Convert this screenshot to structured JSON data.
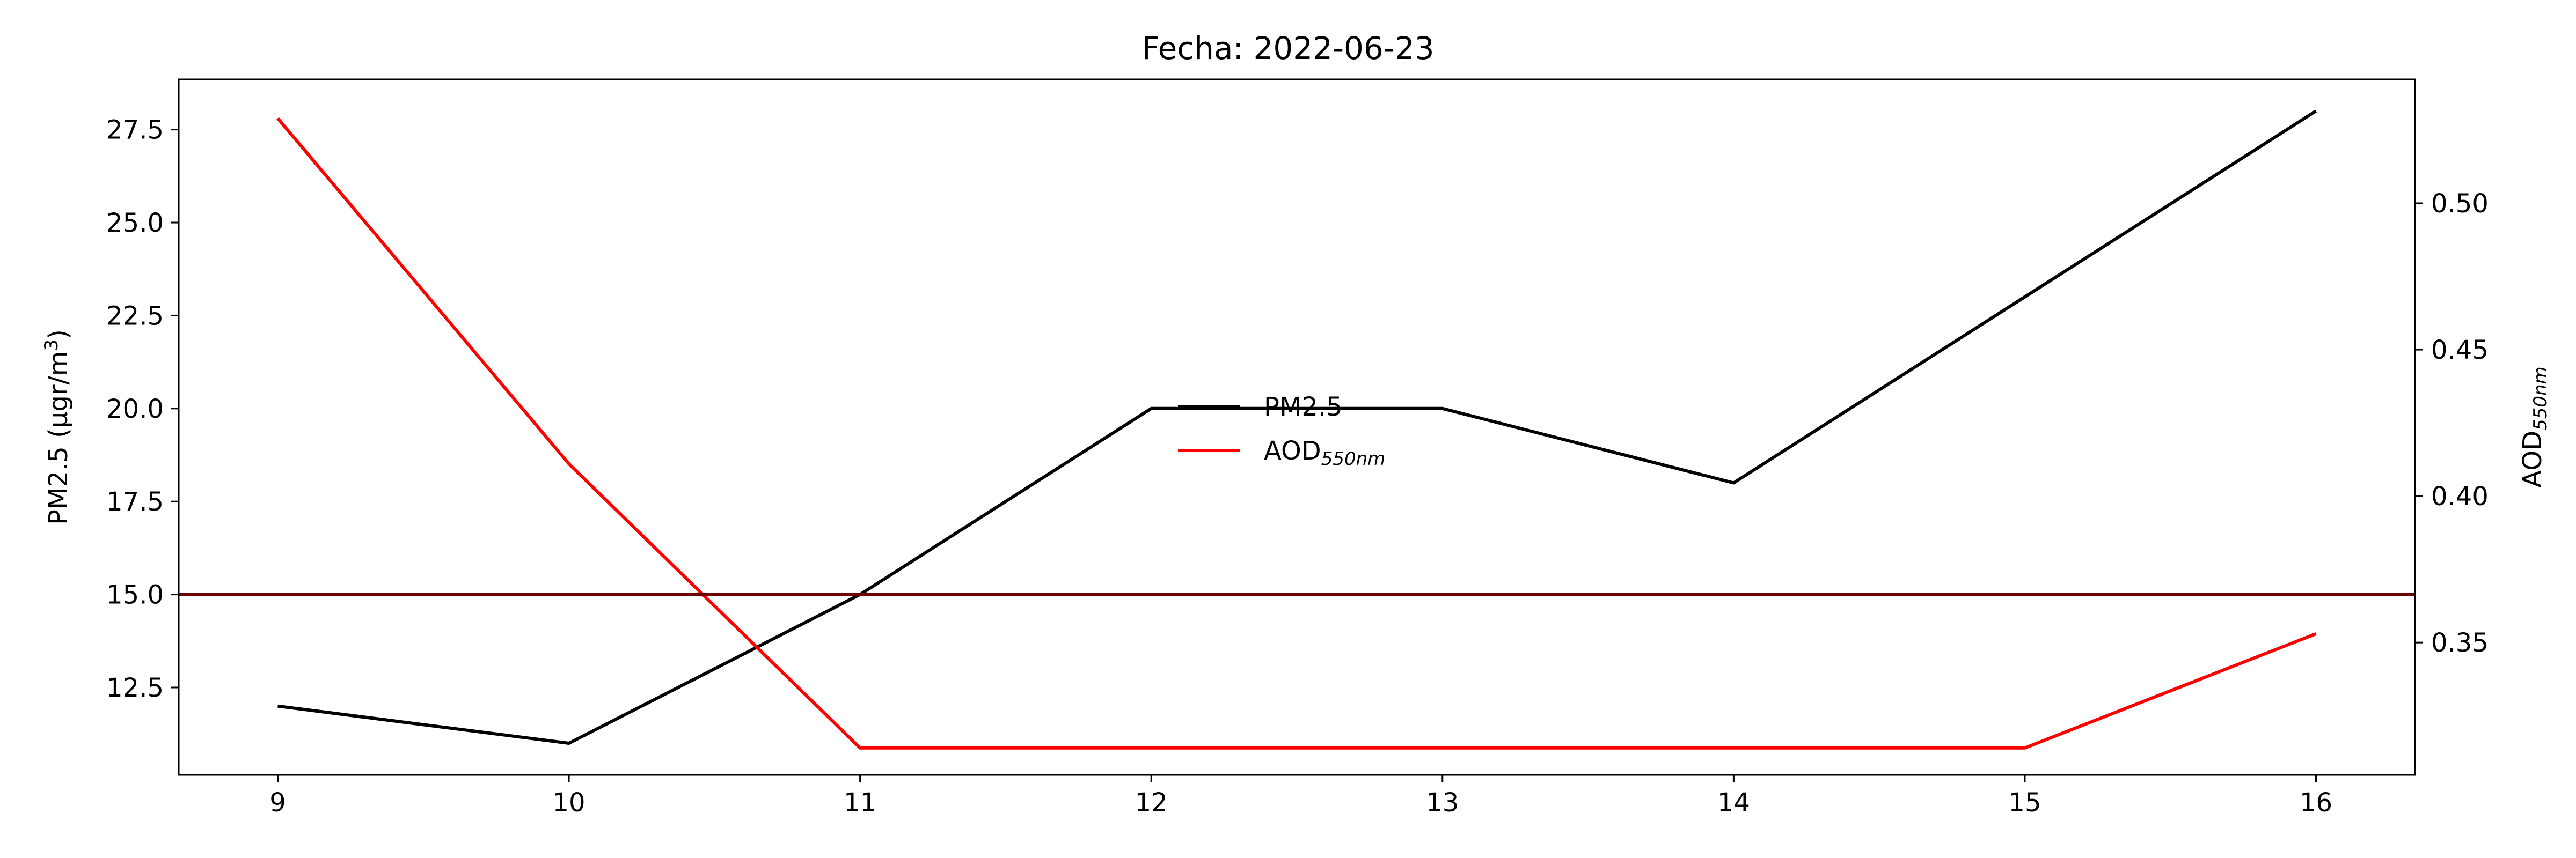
{
  "chart_data": {
    "type": "line",
    "title": "Fecha: 2022-06-23",
    "x": [
      9,
      10,
      11,
      12,
      13,
      14,
      15,
      16
    ],
    "xlim": [
      8.66,
      16.34
    ],
    "xticks": [
      "9",
      "10",
      "11",
      "12",
      "13",
      "14",
      "15",
      "16"
    ],
    "ylabel_left": {
      "main": "PM2.5 (μgr/m",
      "sup": "3",
      "close": ")"
    },
    "ylabel_right": {
      "main": "AOD",
      "sub": "550nm"
    },
    "ylim_left": [
      10.15,
      28.85
    ],
    "ylim_right": [
      0.3048,
      0.5423
    ],
    "yticks_left": [
      "12.5",
      "15.0",
      "17.5",
      "20.0",
      "22.5",
      "25.0",
      "27.5"
    ],
    "yticks_right": [
      "0.35",
      "0.40",
      "0.45",
      "0.50"
    ],
    "series": [
      {
        "name": "PM2.5",
        "axis": "left",
        "color": "#000000",
        "values": [
          12,
          11,
          15,
          20,
          20,
          18,
          23,
          28
        ]
      },
      {
        "name": "AOD",
        "name_sub": "550nm",
        "axis": "right",
        "color": "#ff0000",
        "values": [
          0.529,
          0.411,
          0.314,
          0.314,
          0.314,
          0.314,
          0.314,
          0.353
        ]
      }
    ],
    "hline": {
      "axis": "left",
      "value": 15,
      "color": "#6b0000"
    },
    "legend": {
      "placement": "center"
    },
    "grid": false
  }
}
